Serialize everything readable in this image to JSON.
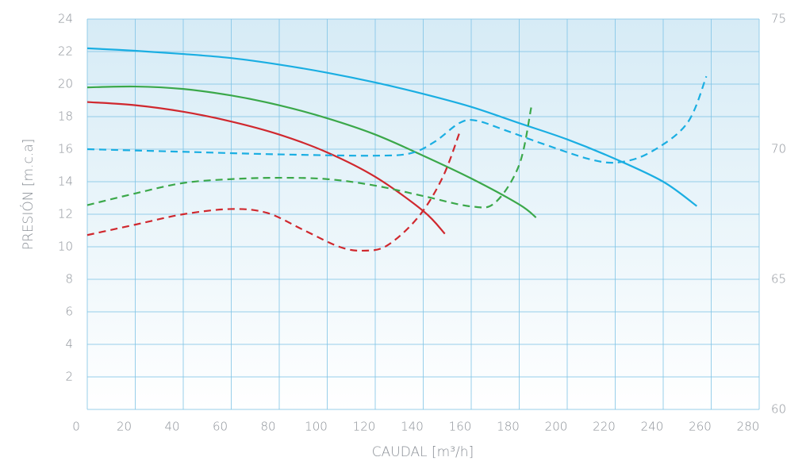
{
  "chart_data": {
    "type": "line",
    "xlabel": "CAUDAL [m³/h]",
    "ylabel": "PRESIÓN [m.c.a]",
    "xlim": [
      0,
      280
    ],
    "xticks": [
      0,
      20,
      40,
      60,
      80,
      100,
      120,
      140,
      160,
      180,
      200,
      220,
      240,
      260,
      280
    ],
    "ylim": [
      0,
      24
    ],
    "yticks": [
      2,
      4,
      6,
      8,
      10,
      12,
      14,
      16,
      18,
      20,
      22,
      24
    ],
    "y2lim": [
      60,
      75
    ],
    "y2ticks": [
      60,
      65,
      70,
      75
    ],
    "grid": true,
    "series": [
      {
        "color": "#1aaee2",
        "style": "solid",
        "x": [
          0,
          20,
          40,
          60,
          80,
          100,
          120,
          140,
          160,
          180,
          200,
          220,
          240,
          254
        ],
        "values": [
          22.2,
          22.05,
          21.85,
          21.6,
          21.2,
          20.7,
          20.1,
          19.4,
          18.6,
          17.6,
          16.6,
          15.4,
          14.0,
          12.5
        ]
      },
      {
        "color": "#3ba84a",
        "style": "solid",
        "x": [
          0,
          20,
          40,
          60,
          80,
          100,
          120,
          140,
          160,
          180,
          187
        ],
        "values": [
          19.8,
          19.85,
          19.7,
          19.3,
          18.7,
          17.9,
          16.9,
          15.6,
          14.2,
          12.6,
          11.8
        ]
      },
      {
        "color": "#d0282e",
        "style": "solid",
        "x": [
          0,
          20,
          40,
          60,
          80,
          100,
          120,
          140,
          149
        ],
        "values": [
          18.9,
          18.7,
          18.3,
          17.7,
          16.9,
          15.8,
          14.3,
          12.2,
          10.8
        ]
      },
      {
        "color": "#1aaee2",
        "style": "dashed",
        "axis": "y2",
        "x": [
          0,
          40,
          80,
          120,
          135,
          145,
          155,
          162,
          175,
          190,
          210,
          222,
          235,
          250,
          258
        ],
        "values": [
          70.0,
          69.9,
          69.8,
          69.75,
          69.85,
          70.3,
          71.0,
          71.1,
          70.7,
          70.2,
          69.6,
          69.5,
          69.9,
          71.0,
          72.8
        ]
      },
      {
        "color": "#3ba84a",
        "style": "dashed",
        "axis": "y2",
        "x": [
          0,
          20,
          40,
          60,
          80,
          100,
          120,
          140,
          160,
          170,
          180,
          185
        ],
        "values": [
          67.85,
          68.3,
          68.7,
          68.85,
          68.9,
          68.85,
          68.6,
          68.2,
          67.8,
          67.95,
          69.4,
          71.6
        ]
      },
      {
        "color": "#d0282e",
        "style": "dashed",
        "axis": "y2",
        "x": [
          0,
          20,
          40,
          60,
          75,
          90,
          105,
          115,
          125,
          138,
          148,
          155
        ],
        "values": [
          66.7,
          67.1,
          67.5,
          67.7,
          67.55,
          66.9,
          66.25,
          66.1,
          66.3,
          67.4,
          68.9,
          70.6
        ]
      }
    ]
  }
}
